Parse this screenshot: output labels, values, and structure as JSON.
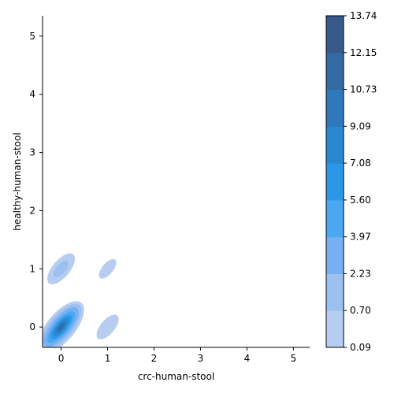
{
  "chart_data": {
    "type": "heatmap",
    "subtype": "bivariate-kde-filled-contours",
    "xlabel": "crc-human-stool",
    "ylabel": "healthy-human-stool",
    "xlim": [
      -0.4,
      5.35
    ],
    "ylim": [
      -0.35,
      5.35
    ],
    "xticks": [
      "0",
      "1",
      "2",
      "3",
      "4",
      "5"
    ],
    "yticks": [
      "0",
      "1",
      "2",
      "3",
      "4",
      "5"
    ],
    "colorbar": {
      "levels": [
        "0.09",
        "0.70",
        "2.23",
        "3.97",
        "5.60",
        "7.08",
        "9.09",
        "10.73",
        "12.15",
        "13.74"
      ],
      "colors": [
        "#b7cdf0",
        "#9cc0f0",
        "#76b0f2",
        "#4aa7f2",
        "#2a98e6",
        "#2a88d2",
        "#2f78bb",
        "#346aa3",
        "#37598b",
        "#3a4b70"
      ]
    },
    "density_clusters": [
      {
        "x": 0.0,
        "y": 0.0,
        "peak_level": 9
      },
      {
        "x": 0.0,
        "y": 1.0,
        "peak_level": 2
      },
      {
        "x": 1.0,
        "y": 1.0,
        "peak_level": 1
      },
      {
        "x": 1.0,
        "y": 0.0,
        "peak_level": 1
      }
    ]
  }
}
